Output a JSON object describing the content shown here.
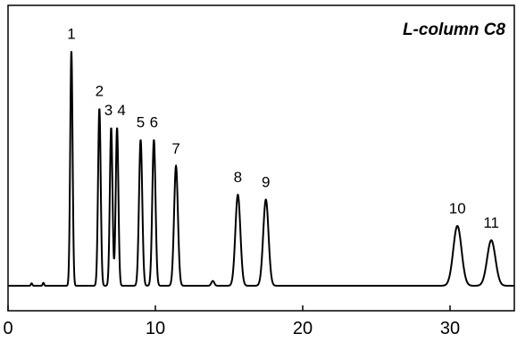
{
  "chart_data": {
    "type": "line",
    "title": "L-column C8",
    "xlabel": "",
    "ylabel": "",
    "xlim": [
      0,
      35
    ],
    "ylim": [
      0,
      100
    ],
    "x_ticks": [
      0,
      10,
      20,
      30
    ],
    "x_tick_labels": [
      "0",
      "10",
      "20",
      "30"
    ],
    "grid": false,
    "baseline": 3,
    "peaks": [
      {
        "label": "1",
        "x": 4.3,
        "height": 98,
        "width": 0.08
      },
      {
        "label": "2",
        "x": 6.2,
        "height": 74,
        "width": 0.09
      },
      {
        "label": "3",
        "x": 7.0,
        "height": 66,
        "width": 0.09
      },
      {
        "label": "4",
        "x": 7.4,
        "height": 66,
        "width": 0.09
      },
      {
        "label": "5",
        "x": 9.0,
        "height": 61,
        "width": 0.11
      },
      {
        "label": "6",
        "x": 9.9,
        "height": 61,
        "width": 0.11
      },
      {
        "label": "7",
        "x": 11.4,
        "height": 50,
        "width": 0.13
      },
      {
        "label": "8",
        "x": 15.6,
        "height": 38,
        "width": 0.17
      },
      {
        "label": "9",
        "x": 17.5,
        "height": 36,
        "width": 0.18
      },
      {
        "label": "10",
        "x": 30.5,
        "height": 25,
        "width": 0.28
      },
      {
        "label": "11",
        "x": 32.8,
        "height": 19,
        "width": 0.28
      }
    ],
    "minor_features": [
      {
        "x": 1.6,
        "height": 1,
        "width": 0.05
      },
      {
        "x": 2.4,
        "height": 1.2,
        "width": 0.05
      },
      {
        "x": 13.9,
        "height": 2,
        "width": 0.1
      }
    ]
  }
}
